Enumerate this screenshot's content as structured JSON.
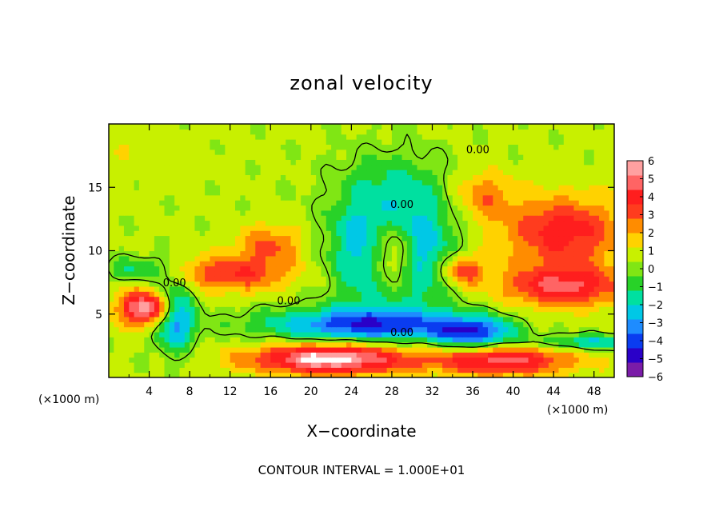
{
  "chart_data": {
    "type": "heatmap",
    "title": "zonal velocity",
    "xlabel": "X−coordinate",
    "ylabel": "Z−coordinate",
    "x_unit_left": "(×1000 m)",
    "x_unit_right": "(×1000 m)",
    "xlim": [
      0,
      50
    ],
    "ylim": [
      0,
      20
    ],
    "x_ticks": [
      4,
      8,
      12,
      16,
      20,
      24,
      28,
      32,
      36,
      40,
      44,
      48
    ],
    "y_ticks": [
      5,
      10,
      15
    ],
    "colorbar": {
      "min": -6,
      "max": 6,
      "ticks": [
        6,
        5,
        4,
        3,
        2,
        1,
        0,
        -1,
        -2,
        -3,
        -4,
        -5,
        -6
      ],
      "colors": [
        "#7a1ca8",
        "#2a00c8",
        "#0a3cf0",
        "#1e8cff",
        "#00c8e6",
        "#00e0a0",
        "#28d228",
        "#80e614",
        "#c8f000",
        "#ffd200",
        "#ff8c00",
        "#ff3c1e",
        "#ff1e1e",
        "#ff6464",
        "#ffa0a0"
      ],
      "over_color": "#ffffff"
    },
    "contour_labels": [
      {
        "text": "0.00",
        "x": 36.5,
        "y": 18.0
      },
      {
        "text": "0.00",
        "x": 29.0,
        "y": 13.7
      },
      {
        "text": "0.00",
        "x": 6.5,
        "y": 7.5
      },
      {
        "text": "0.00",
        "x": 17.8,
        "y": 6.1
      },
      {
        "text": "0.00",
        "x": 29.0,
        "y": 3.6
      }
    ],
    "contour_interval_text": "CONTOUR INTERVAL = 1.000E+01"
  }
}
